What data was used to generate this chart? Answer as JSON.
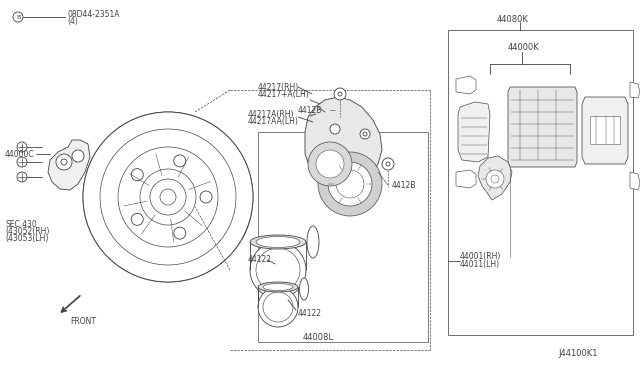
{
  "bg_color": "#ffffff",
  "line_color": "#404040",
  "labels": {
    "bolt_label": "B 08D44-2351A\n   (4)",
    "part44000C": "44000C",
    "sec430": "SEC.430\n(43052(RH)\n(43053(LH)",
    "part44217rh": "44217(RH)",
    "part44217lh": "44217+A(LH)",
    "part44217Arh": "44217A(RH)",
    "part44217AAlh": "44217AA(LH)",
    "part44122a": "44122",
    "part44122b": "44122",
    "part4412B_top": "4412B",
    "part4412B_mid": "4412B",
    "part44008L": "44008L",
    "part44080K": "44080K",
    "part44000K": "44000K",
    "part44001": "44001(RH)\n44011(LH)",
    "front_arrow": "FRONT",
    "diagram_id": "J44100K1"
  },
  "fs": 5.5,
  "fm": 6.0,
  "lw": 0.6
}
